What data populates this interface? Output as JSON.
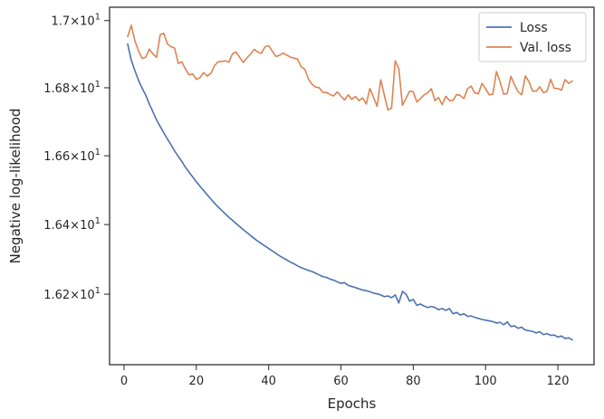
{
  "chart_data": {
    "type": "line",
    "title": "",
    "xlabel": "Epochs",
    "ylabel": "Negative log-likelihood",
    "xlim": [
      -4,
      130
    ],
    "ylim": [
      16.0,
      17.04
    ],
    "y_scale": "log",
    "x_ticks": [
      0,
      20,
      40,
      60,
      80,
      100,
      120
    ],
    "x_tick_labels": [
      "0",
      "20",
      "40",
      "60",
      "80",
      "100",
      "120"
    ],
    "y_ticks": [
      16.2,
      16.4,
      16.6,
      16.8,
      17.0
    ],
    "y_tick_labels": [
      {
        "mantissa": "1.62",
        "base": "10",
        "exp": "1"
      },
      {
        "mantissa": "1.64",
        "base": "10",
        "exp": "1"
      },
      {
        "mantissa": "1.66",
        "base": "10",
        "exp": "1"
      },
      {
        "mantissa": "1.68",
        "base": "10",
        "exp": "1"
      },
      {
        "mantissa": "1.7",
        "base": "10",
        "exp": "1"
      }
    ],
    "grid": false,
    "legend_position": "top-right",
    "series": [
      {
        "name": "Loss",
        "color": "#4c72b0",
        "x": [
          1,
          2,
          3,
          4,
          5,
          6,
          7,
          8,
          9,
          10,
          11,
          12,
          13,
          14,
          15,
          16,
          17,
          18,
          19,
          20,
          21,
          22,
          23,
          24,
          25,
          26,
          27,
          28,
          29,
          30,
          31,
          32,
          33,
          34,
          35,
          36,
          37,
          38,
          39,
          40,
          41,
          42,
          43,
          44,
          45,
          46,
          47,
          48,
          49,
          50,
          51,
          52,
          53,
          54,
          55,
          56,
          57,
          58,
          59,
          60,
          61,
          62,
          63,
          64,
          65,
          66,
          67,
          68,
          69,
          70,
          71,
          72,
          73,
          74,
          75,
          76,
          77,
          78,
          79,
          80,
          81,
          82,
          83,
          84,
          85,
          86,
          87,
          88,
          89,
          90,
          91,
          92,
          93,
          94,
          95,
          96,
          97,
          98,
          99,
          100,
          101,
          102,
          103,
          104,
          105,
          106,
          107,
          108,
          109,
          110,
          111,
          112,
          113,
          114,
          115,
          116,
          117,
          118,
          119,
          120,
          121,
          122,
          123,
          124
        ],
        "values": [
          16.93,
          16.882,
          16.851,
          16.822,
          16.799,
          16.778,
          16.752,
          16.729,
          16.705,
          16.686,
          16.667,
          16.649,
          16.632,
          16.614,
          16.598,
          16.583,
          16.566,
          16.552,
          16.538,
          16.524,
          16.511,
          16.499,
          16.486,
          16.474,
          16.462,
          16.451,
          16.441,
          16.431,
          16.421,
          16.412,
          16.403,
          16.394,
          16.385,
          16.377,
          16.368,
          16.36,
          16.352,
          16.345,
          16.338,
          16.331,
          16.324,
          16.317,
          16.31,
          16.304,
          16.298,
          16.292,
          16.287,
          16.281,
          16.276,
          16.272,
          16.268,
          16.265,
          16.26,
          16.255,
          16.25,
          16.248,
          16.243,
          16.24,
          16.235,
          16.231,
          16.233,
          16.225,
          16.222,
          16.219,
          16.215,
          16.212,
          16.21,
          16.207,
          16.203,
          16.201,
          16.198,
          16.193,
          16.195,
          16.19,
          16.198,
          16.175,
          16.208,
          16.2,
          16.18,
          16.185,
          16.168,
          16.172,
          16.166,
          16.162,
          16.165,
          16.162,
          16.156,
          16.159,
          16.154,
          16.159,
          16.144,
          16.148,
          16.141,
          16.144,
          16.137,
          16.138,
          16.134,
          16.131,
          16.128,
          16.126,
          16.124,
          16.122,
          16.118,
          16.12,
          16.113,
          16.121,
          16.108,
          16.11,
          16.103,
          16.106,
          16.098,
          16.096,
          16.094,
          16.09,
          16.093,
          16.085,
          16.088,
          16.083,
          16.084,
          16.078,
          16.081,
          16.074,
          16.076,
          16.07
        ]
      },
      {
        "name": "Val. loss",
        "color": "#dd8452",
        "x": [
          1,
          2,
          3,
          4,
          5,
          6,
          7,
          8,
          9,
          10,
          11,
          12,
          13,
          14,
          15,
          16,
          17,
          18,
          19,
          20,
          21,
          22,
          23,
          24,
          25,
          26,
          27,
          28,
          29,
          30,
          31,
          32,
          33,
          34,
          35,
          36,
          37,
          38,
          39,
          40,
          41,
          42,
          43,
          44,
          45,
          46,
          47,
          48,
          49,
          50,
          51,
          52,
          53,
          54,
          55,
          56,
          57,
          58,
          59,
          60,
          61,
          62,
          63,
          64,
          65,
          66,
          67,
          68,
          69,
          70,
          71,
          72,
          73,
          74,
          75,
          76,
          77,
          78,
          79,
          80,
          81,
          82,
          83,
          84,
          85,
          86,
          87,
          88,
          89,
          90,
          91,
          92,
          93,
          94,
          95,
          96,
          97,
          98,
          99,
          100,
          101,
          102,
          103,
          104,
          105,
          106,
          107,
          108,
          109,
          110,
          111,
          112,
          113,
          114,
          115,
          116,
          117,
          118,
          119,
          120,
          121,
          122,
          123,
          124
        ],
        "values": [
          16.952,
          16.986,
          16.94,
          16.91,
          16.887,
          16.891,
          16.915,
          16.9,
          16.89,
          16.958,
          16.962,
          16.93,
          16.922,
          16.918,
          16.872,
          16.877,
          16.855,
          16.838,
          16.841,
          16.825,
          16.83,
          16.845,
          16.835,
          16.842,
          16.865,
          16.877,
          16.878,
          16.88,
          16.876,
          16.901,
          16.906,
          16.89,
          16.875,
          16.889,
          16.9,
          16.914,
          16.906,
          16.902,
          16.922,
          16.925,
          16.909,
          16.893,
          16.896,
          16.903,
          16.897,
          16.891,
          16.888,
          16.885,
          16.862,
          16.855,
          16.826,
          16.81,
          16.802,
          16.8,
          16.786,
          16.786,
          16.78,
          16.776,
          16.788,
          16.775,
          16.764,
          16.779,
          16.766,
          16.774,
          16.762,
          16.77,
          16.752,
          16.798,
          16.772,
          16.745,
          16.824,
          16.778,
          16.734,
          16.74,
          16.88,
          16.857,
          16.748,
          16.769,
          16.79,
          16.788,
          16.758,
          16.768,
          16.779,
          16.785,
          16.797,
          16.762,
          16.771,
          16.75,
          16.775,
          16.762,
          16.763,
          16.78,
          16.777,
          16.768,
          16.797,
          16.805,
          16.785,
          16.782,
          16.813,
          16.797,
          16.779,
          16.781,
          16.848,
          16.818,
          16.781,
          16.783,
          16.834,
          16.809,
          16.788,
          16.779,
          16.835,
          16.818,
          16.79,
          16.79,
          16.803,
          16.785,
          16.79,
          16.825,
          16.798,
          16.798,
          16.793,
          16.824,
          16.813,
          16.82
        ]
      }
    ]
  }
}
